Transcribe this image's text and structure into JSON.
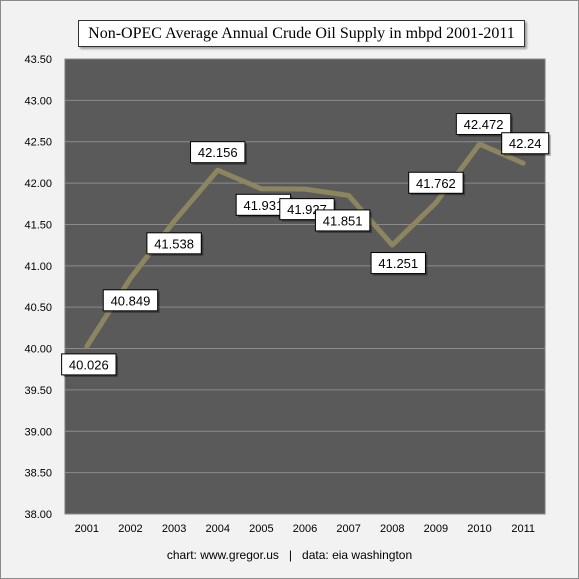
{
  "chart_data": {
    "type": "line",
    "title": "Non-OPEC Average Annual Crude Oil Supply in mbpd 2001-2011",
    "xlabel": "",
    "ylabel": "",
    "categories": [
      "2001",
      "2002",
      "2003",
      "2004",
      "2005",
      "2006",
      "2007",
      "2008",
      "2009",
      "2010",
      "2011"
    ],
    "values": [
      40.026,
      40.849,
      41.538,
      42.156,
      41.931,
      41.927,
      41.851,
      41.251,
      41.762,
      42.472,
      42.24
    ],
    "data_labels": [
      "40.026",
      "40.849",
      "41.538",
      "42.156",
      "41.931",
      "41.927",
      "41.851",
      "41.251",
      "41.762",
      "42.472",
      "42.24"
    ],
    "ylim": [
      38.0,
      43.5
    ],
    "yticks": [
      "38.00",
      "38.50",
      "39.00",
      "39.50",
      "40.00",
      "40.50",
      "41.00",
      "41.50",
      "42.00",
      "42.50",
      "43.00",
      "43.50"
    ],
    "grid": true,
    "legend": "none"
  },
  "footer": "chart: www.gregor.us   |   data: eia washington",
  "colors": {
    "plot_background": "#5a5a5a",
    "gridline": "#8c8c8c",
    "line": "#8c8560",
    "page_background": "#f2f2f2"
  }
}
